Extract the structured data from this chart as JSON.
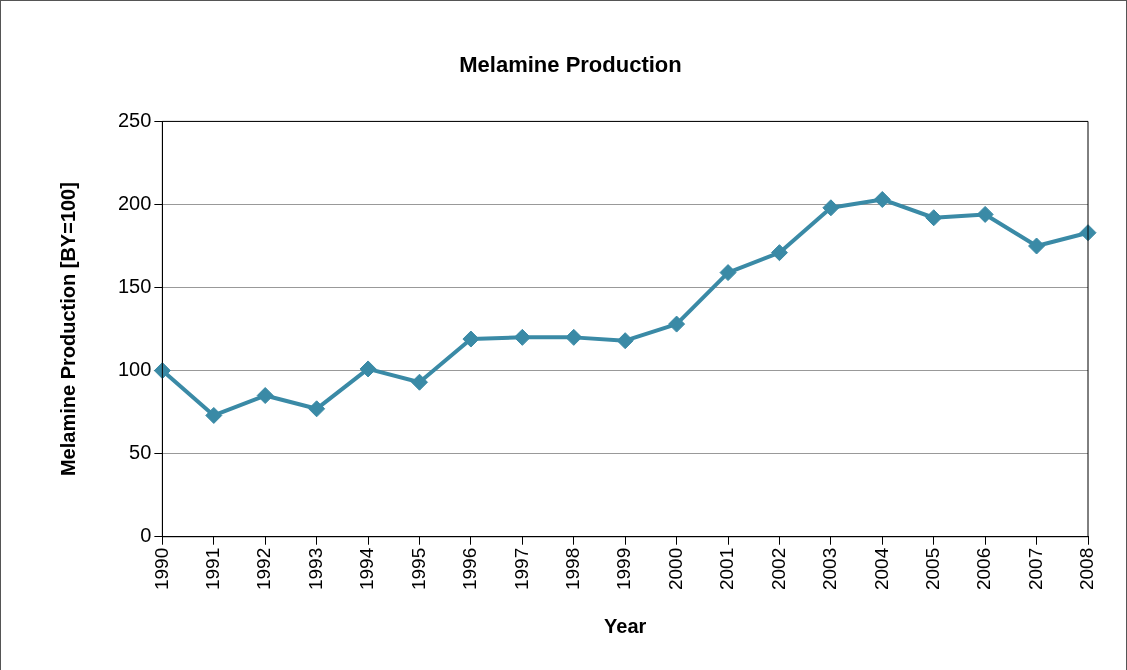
{
  "chart_data": {
    "type": "line",
    "title": "Melamine Production",
    "xlabel": "Year",
    "ylabel": "Melamine Production [BY=100]",
    "categories": [
      "1990",
      "1991",
      "1992",
      "1993",
      "1994",
      "1995",
      "1996",
      "1997",
      "1998",
      "1999",
      "2000",
      "2001",
      "2002",
      "2003",
      "2004",
      "2005",
      "2006",
      "2007",
      "2008"
    ],
    "series": [
      {
        "color": "#3a8aa6",
        "values": [
          100,
          73,
          85,
          77,
          101,
          93,
          119,
          120,
          120,
          118,
          128,
          159,
          171,
          198,
          203,
          192,
          194,
          175,
          183
        ]
      }
    ],
    "ylim": [
      0,
      250
    ],
    "yticks": [
      0,
      50,
      100,
      150,
      200,
      250
    ],
    "grid": "y",
    "legend": false,
    "marker": "diamond",
    "line_style": "solid"
  }
}
